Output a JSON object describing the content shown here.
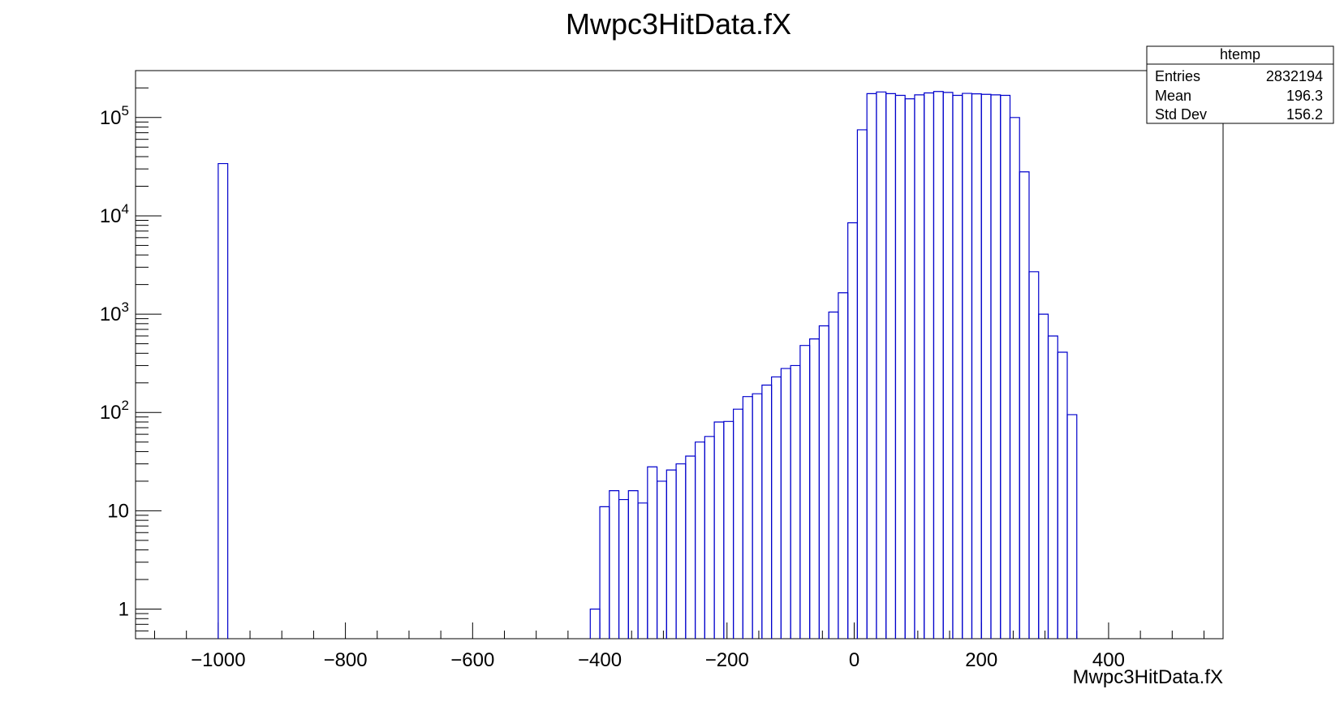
{
  "chart_data": {
    "type": "histogram",
    "title": "Mwpc3HitData.fX",
    "xlabel": "Mwpc3HitData.fX",
    "ylabel": "",
    "y_scale": "log",
    "xlim": [
      -1130,
      580
    ],
    "ylim": [
      0.5,
      300000
    ],
    "grid": false,
    "line_color": "#0000cc",
    "x_ticks": [
      -1000,
      -800,
      -600,
      -400,
      -200,
      0,
      200,
      400
    ],
    "x_tick_labels": [
      "−1000",
      "−800",
      "−600",
      "−400",
      "−200",
      "0",
      "200",
      "400"
    ],
    "y_ticks": [
      {
        "value": 1,
        "base": "1",
        "exp": ""
      },
      {
        "value": 10,
        "base": "10",
        "exp": ""
      },
      {
        "value": 100,
        "base": "10",
        "exp": "2"
      },
      {
        "value": 1000,
        "base": "10",
        "exp": "3"
      },
      {
        "value": 10000,
        "base": "10",
        "exp": "4"
      },
      {
        "value": 100000,
        "base": "10",
        "exp": "5"
      }
    ],
    "bins": [
      {
        "x0": -1000,
        "x1": -985,
        "y": 34000
      },
      {
        "x0": -415,
        "x1": -400,
        "y": 1
      },
      {
        "x0": -400,
        "x1": -385,
        "y": 11
      },
      {
        "x0": -385,
        "x1": -370,
        "y": 16
      },
      {
        "x0": -370,
        "x1": -355,
        "y": 13
      },
      {
        "x0": -355,
        "x1": -340,
        "y": 16
      },
      {
        "x0": -340,
        "x1": -325,
        "y": 12
      },
      {
        "x0": -325,
        "x1": -310,
        "y": 28
      },
      {
        "x0": -310,
        "x1": -295,
        "y": 20
      },
      {
        "x0": -295,
        "x1": -280,
        "y": 26
      },
      {
        "x0": -280,
        "x1": -265,
        "y": 30
      },
      {
        "x0": -265,
        "x1": -250,
        "y": 36
      },
      {
        "x0": -250,
        "x1": -235,
        "y": 50
      },
      {
        "x0": -235,
        "x1": -220,
        "y": 57
      },
      {
        "x0": -220,
        "x1": -205,
        "y": 80
      },
      {
        "x0": -205,
        "x1": -190,
        "y": 81
      },
      {
        "x0": -190,
        "x1": -175,
        "y": 108
      },
      {
        "x0": -175,
        "x1": -160,
        "y": 145
      },
      {
        "x0": -160,
        "x1": -145,
        "y": 155
      },
      {
        "x0": -145,
        "x1": -130,
        "y": 190
      },
      {
        "x0": -130,
        "x1": -115,
        "y": 230
      },
      {
        "x0": -115,
        "x1": -100,
        "y": 280
      },
      {
        "x0": -100,
        "x1": -85,
        "y": 300
      },
      {
        "x0": -85,
        "x1": -70,
        "y": 480
      },
      {
        "x0": -70,
        "x1": -55,
        "y": 560
      },
      {
        "x0": -55,
        "x1": -40,
        "y": 760
      },
      {
        "x0": -40,
        "x1": -25,
        "y": 1050
      },
      {
        "x0": -25,
        "x1": -10,
        "y": 1650
      },
      {
        "x0": -10,
        "x1": 5,
        "y": 8500
      },
      {
        "x0": 5,
        "x1": 20,
        "y": 75000
      },
      {
        "x0": 20,
        "x1": 35,
        "y": 175000
      },
      {
        "x0": 35,
        "x1": 50,
        "y": 182000
      },
      {
        "x0": 50,
        "x1": 65,
        "y": 175000
      },
      {
        "x0": 65,
        "x1": 80,
        "y": 168000
      },
      {
        "x0": 80,
        "x1": 95,
        "y": 155000
      },
      {
        "x0": 95,
        "x1": 110,
        "y": 170000
      },
      {
        "x0": 110,
        "x1": 125,
        "y": 178000
      },
      {
        "x0": 125,
        "x1": 140,
        "y": 184000
      },
      {
        "x0": 140,
        "x1": 155,
        "y": 180000
      },
      {
        "x0": 155,
        "x1": 170,
        "y": 168000
      },
      {
        "x0": 170,
        "x1": 185,
        "y": 176000
      },
      {
        "x0": 185,
        "x1": 200,
        "y": 174000
      },
      {
        "x0": 200,
        "x1": 215,
        "y": 172000
      },
      {
        "x0": 215,
        "x1": 230,
        "y": 170000
      },
      {
        "x0": 230,
        "x1": 245,
        "y": 168000
      },
      {
        "x0": 245,
        "x1": 260,
        "y": 100000
      },
      {
        "x0": 260,
        "x1": 275,
        "y": 28000
      },
      {
        "x0": 275,
        "x1": 290,
        "y": 2700
      },
      {
        "x0": 290,
        "x1": 305,
        "y": 1000
      },
      {
        "x0": 305,
        "x1": 320,
        "y": 600
      },
      {
        "x0": 320,
        "x1": 335,
        "y": 410
      },
      {
        "x0": 335,
        "x1": 350,
        "y": 95
      }
    ]
  },
  "stats_box": {
    "name": "htemp",
    "rows": [
      {
        "label": "Entries",
        "value": "2832194"
      },
      {
        "label": "Mean",
        "value": "196.3"
      },
      {
        "label": "Std Dev",
        "value": "156.2"
      }
    ]
  }
}
